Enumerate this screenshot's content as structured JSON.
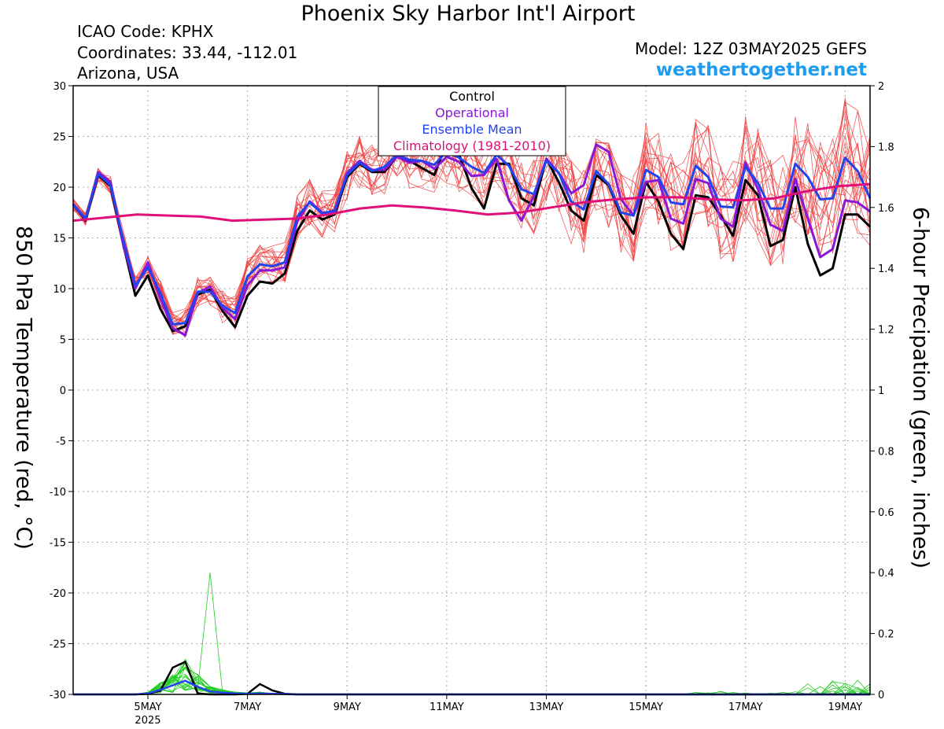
{
  "header": {
    "title": "Phoenix Sky Harbor Int'l Airport",
    "icao": "ICAO Code: KPHX",
    "coords": "Coordinates: 33.44, -112.01",
    "location": "Arizona, USA",
    "model": "Model: 12Z 03MAY2025 GEFS",
    "site": "weathertogether.net",
    "site_color": "#1e9cf0"
  },
  "chart_data": {
    "type": "line",
    "ylabel_left": "850 hPa Temperature (red, °C)",
    "ylabel_right": "6-hour Precipation (green, inches)",
    "y_left_ticks": [
      "30",
      "25",
      "20",
      "15",
      "10",
      "5",
      "0",
      "-5",
      "-10",
      "-15",
      "-20",
      "-25",
      "-30"
    ],
    "y_right_ticks": [
      "2",
      "1.8",
      "1.6",
      "1.4",
      "1.2",
      "1",
      "0.8",
      "0.6",
      "0.4",
      "0.2",
      "0"
    ],
    "ylim_left": [
      -30,
      30
    ],
    "ylim_right": [
      0,
      2
    ],
    "x_ticks": [
      {
        "day": 5,
        "label": "5MAY",
        "sub": "2025"
      },
      {
        "day": 7,
        "label": "7MAY"
      },
      {
        "day": 9,
        "label": "9MAY"
      },
      {
        "day": 11,
        "label": "11MAY"
      },
      {
        "day": 13,
        "label": "13MAY"
      },
      {
        "day": 15,
        "label": "15MAY"
      },
      {
        "day": 17,
        "label": "17MAY"
      },
      {
        "day": 19,
        "label": "19MAY"
      }
    ],
    "xlim_days": [
      3.5,
      19.5
    ],
    "grid": true,
    "legend_position": "top-center",
    "legend": [
      {
        "label": "Control",
        "color": "#000000"
      },
      {
        "label": "Operational",
        "color": "#8a16d8"
      },
      {
        "label": "Ensemble Mean",
        "color": "#2244ee"
      },
      {
        "label": "Climatology (1981-2010)",
        "color": "#e0107a"
      }
    ],
    "member_color": "#f04040",
    "precip_color": "#22cc22",
    "series": [
      {
        "name": "Control",
        "color": "#000000",
        "values": [
          18.3,
          16.7,
          21.2,
          20.1,
          14.5,
          9.3,
          11.3,
          8.0,
          5.8,
          6.3,
          9.4,
          9.9,
          7.8,
          6.2,
          9.3,
          10.7,
          10.5,
          11.5,
          15.7,
          17.7,
          16.8,
          17.3,
          21.0,
          22.3,
          21.5,
          21.5,
          23.0,
          22.6,
          21.9,
          21.2,
          24.4,
          23.2,
          19.9,
          17.9,
          22.3,
          22.3,
          18.9,
          18.2,
          22.8,
          20.5,
          17.7,
          16.7,
          21.2,
          20.2,
          17.2,
          15.4,
          20.5,
          18.6,
          15.4,
          13.9,
          19.2,
          19.0,
          17.2,
          15.2,
          20.7,
          19.2,
          14.2,
          14.8,
          20.0,
          14.4,
          11.3,
          12.0,
          17.3,
          17.3,
          16.1
        ]
      },
      {
        "name": "Operational",
        "color": "#8a16d8",
        "values": [
          18.3,
          16.8,
          21.5,
          20.5,
          14.5,
          10.0,
          12.6,
          9.0,
          6.1,
          5.4,
          9.6,
          10.2,
          8.1,
          7.0,
          10.3,
          11.8,
          11.8,
          12.1,
          16.6,
          18.6,
          17.5,
          17.5,
          21.4,
          22.6,
          21.7,
          21.7,
          23.0,
          22.4,
          22.6,
          21.8,
          23.0,
          22.5,
          21.1,
          21.2,
          22.8,
          18.7,
          16.7,
          19.1,
          22.8,
          21.4,
          19.4,
          20.2,
          24.2,
          23.5,
          18.8,
          17.2,
          20.5,
          20.7,
          16.9,
          16.4,
          20.8,
          20.4,
          16.9,
          16.1,
          22.4,
          19.8,
          16.3,
          15.7,
          20.8,
          16.9,
          13.1,
          13.9,
          18.7,
          18.5,
          17.6
        ]
      },
      {
        "name": "Ensemble Mean",
        "color": "#2244ee",
        "values": [
          18.3,
          16.9,
          21.3,
          20.2,
          14.9,
          10.3,
          12.1,
          9.6,
          6.5,
          6.6,
          9.7,
          9.7,
          8.3,
          7.6,
          11.2,
          12.4,
          12.2,
          12.6,
          17.1,
          18.5,
          17.4,
          17.7,
          21.2,
          22.4,
          21.6,
          22.0,
          23.2,
          22.7,
          22.6,
          22.2,
          23.5,
          22.9,
          22.0,
          21.4,
          23.2,
          22.1,
          19.8,
          19.3,
          22.6,
          21.4,
          18.6,
          17.8,
          21.6,
          20.3,
          17.5,
          17.2,
          21.7,
          21.0,
          18.5,
          18.3,
          22.1,
          21.0,
          18.1,
          18.0,
          22.0,
          20.4,
          17.9,
          17.9,
          22.3,
          21.0,
          18.8,
          18.9,
          22.9,
          21.6,
          18.9
        ]
      },
      {
        "name": "Climatology (1981-2010)",
        "color": "#e0107a",
        "values": [
          16.7,
          17.0,
          17.3,
          17.2,
          17.1,
          16.7,
          16.8,
          16.9,
          17.3,
          17.9,
          18.2,
          18.0,
          17.7,
          17.3,
          17.5,
          18.0,
          18.5,
          18.8,
          19.0,
          19.0,
          18.8,
          18.7,
          18.9,
          19.6,
          20.1,
          20.3
        ]
      }
    ],
    "precip_series": [
      {
        "name": "Control",
        "values": [
          0,
          0,
          0,
          0,
          0,
          0,
          0.002,
          0.012,
          0.088,
          0.107,
          0.003,
          0.0,
          0.0,
          0,
          0.002,
          0.034,
          0.013,
          0.002,
          0,
          0,
          0,
          0,
          0,
          0,
          0,
          0,
          0,
          0,
          0,
          0,
          0,
          0,
          0,
          0,
          0,
          0,
          0,
          0,
          0,
          0,
          0,
          0,
          0,
          0,
          0,
          0,
          0,
          0,
          0,
          0,
          0,
          0,
          0,
          0,
          0,
          0,
          0,
          0,
          0,
          0,
          0,
          0,
          0,
          0,
          0
        ]
      },
      {
        "name": "Ensemble Mean",
        "values": [
          0,
          0,
          0,
          0,
          0,
          0,
          0.003,
          0.015,
          0.03,
          0.045,
          0.025,
          0.01,
          0.006,
          0.003,
          0.002,
          0.003,
          0.002,
          0.001,
          0,
          0,
          0,
          0,
          0,
          0,
          0,
          0,
          0,
          0,
          0,
          0,
          0,
          0,
          0,
          0,
          0,
          0,
          0,
          0,
          0,
          0,
          0,
          0,
          0,
          0,
          0,
          0,
          0,
          0,
          0,
          0,
          0,
          0,
          0,
          0,
          0,
          0,
          0,
          0,
          0,
          0,
          0,
          0,
          0,
          0,
          0
        ]
      }
    ],
    "precip_peak": {
      "day_index": 11,
      "value": 0.4
    }
  }
}
